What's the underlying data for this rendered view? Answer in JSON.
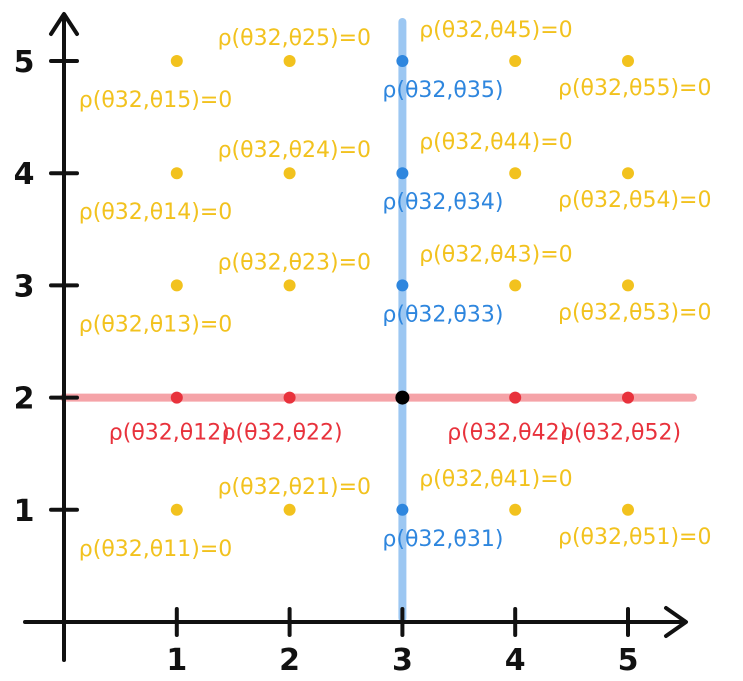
{
  "chart_data": {
    "type": "scatter",
    "xlim": [
      0,
      5.5
    ],
    "ylim": [
      0,
      5.5
    ],
    "x_ticks": [
      "1",
      "2",
      "3",
      "4",
      "5"
    ],
    "y_ticks": [
      "1",
      "2",
      "3",
      "4",
      "5"
    ],
    "grid": false,
    "colors": {
      "zero": "#F2C21E",
      "row": "#E8323C",
      "column": "#2E86DE",
      "center": "#000000",
      "row_line": "#F5A3A8",
      "column_line": "#9CC7F2"
    },
    "center_point": {
      "x": 3,
      "y": 2
    },
    "points": [
      {
        "x": 1,
        "y": 1,
        "group": "zero",
        "label": "ρ(θ32,θ11)=0"
      },
      {
        "x": 1,
        "y": 3,
        "group": "zero",
        "label": "ρ(θ32,θ13)=0"
      },
      {
        "x": 1,
        "y": 4,
        "group": "zero",
        "label": "ρ(θ32,θ14)=0"
      },
      {
        "x": 1,
        "y": 5,
        "group": "zero",
        "label": "ρ(θ32,θ15)=0"
      },
      {
        "x": 2,
        "y": 1,
        "group": "zero",
        "label": "ρ(θ32,θ21)=0"
      },
      {
        "x": 2,
        "y": 3,
        "group": "zero",
        "label": "ρ(θ32,θ23)=0"
      },
      {
        "x": 2,
        "y": 4,
        "group": "zero",
        "label": "ρ(θ32,θ24)=0"
      },
      {
        "x": 2,
        "y": 5,
        "group": "zero",
        "label": "ρ(θ32,θ25)=0"
      },
      {
        "x": 4,
        "y": 1,
        "group": "zero",
        "label": "ρ(θ32,θ41)=0"
      },
      {
        "x": 4,
        "y": 3,
        "group": "zero",
        "label": "ρ(θ32,θ43)=0"
      },
      {
        "x": 4,
        "y": 4,
        "group": "zero",
        "label": "ρ(θ32,θ44)=0"
      },
      {
        "x": 4,
        "y": 5,
        "group": "zero",
        "label": "ρ(θ32,θ45)=0"
      },
      {
        "x": 5,
        "y": 1,
        "group": "zero",
        "label": "ρ(θ32,θ51)=0"
      },
      {
        "x": 5,
        "y": 3,
        "group": "zero",
        "label": "ρ(θ32,θ53)=0"
      },
      {
        "x": 5,
        "y": 4,
        "group": "zero",
        "label": "ρ(θ32,θ54)=0"
      },
      {
        "x": 5,
        "y": 5,
        "group": "zero",
        "label": "ρ(θ32,θ55)=0"
      },
      {
        "x": 1,
        "y": 2,
        "group": "row",
        "label": "ρ(θ32,θ12)"
      },
      {
        "x": 2,
        "y": 2,
        "group": "row",
        "label": "ρ(θ32,θ22)"
      },
      {
        "x": 4,
        "y": 2,
        "group": "row",
        "label": "ρ(θ32,θ42)"
      },
      {
        "x": 5,
        "y": 2,
        "group": "row",
        "label": "ρ(θ32,θ52)"
      },
      {
        "x": 3,
        "y": 1,
        "group": "column",
        "label": "ρ(θ32,θ31)"
      },
      {
        "x": 3,
        "y": 3,
        "group": "column",
        "label": "ρ(θ32,θ33)"
      },
      {
        "x": 3,
        "y": 4,
        "group": "column",
        "label": "ρ(θ32,θ34)"
      },
      {
        "x": 3,
        "y": 5,
        "group": "column",
        "label": "ρ(θ32,θ35)"
      }
    ]
  }
}
